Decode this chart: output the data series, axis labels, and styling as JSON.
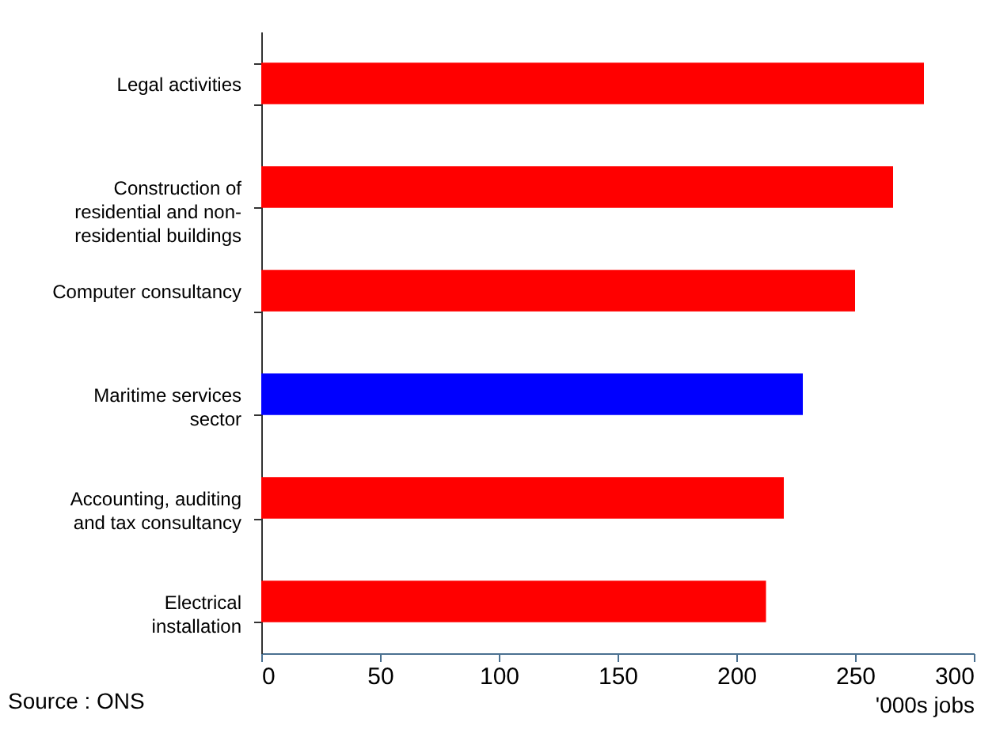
{
  "chart_data": {
    "type": "bar",
    "orientation": "horizontal",
    "categories": [
      "Legal activities",
      "Construction of residential and non-residential buildings",
      "Computer consultancy",
      "Maritime services sector",
      "Accounting, auditing and tax consultancy",
      "Electrical installation"
    ],
    "values": [
      279,
      266,
      250,
      228,
      220,
      212.5
    ],
    "colors": [
      "#ff0000",
      "#ff0000",
      "#ff0000",
      "#0000ff",
      "#ff0000",
      "#ff0000"
    ],
    "xlim": [
      0,
      300
    ],
    "xticks": [
      0,
      50,
      100,
      150,
      200,
      250,
      300
    ],
    "xlabel": "'000s jobs",
    "annotations": [
      "Source : ONS"
    ],
    "grid": false,
    "legend": false
  }
}
